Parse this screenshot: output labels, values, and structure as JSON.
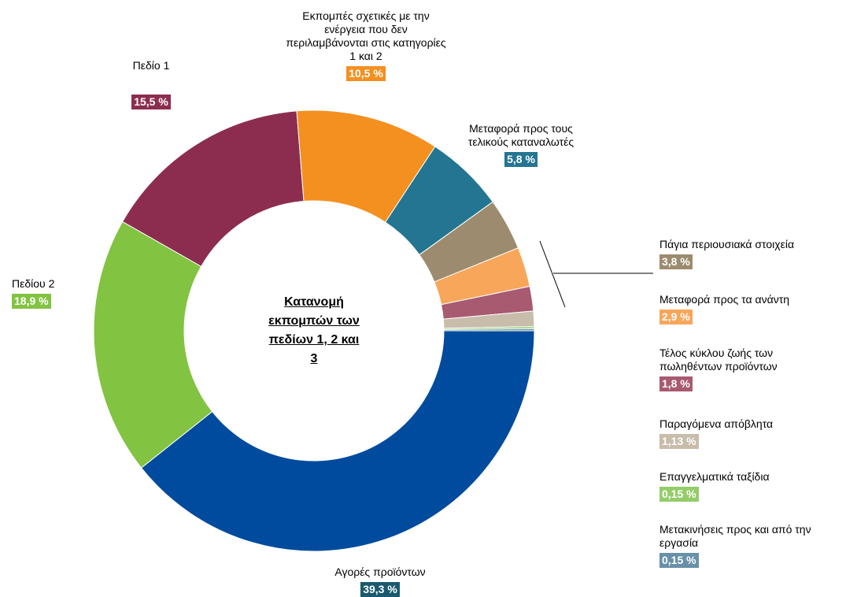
{
  "chart_data": {
    "type": "donut",
    "title": "Κατανομή\nεκπομπών των\nπεδίων 1, 2 και\n3",
    "categories": [
      "Αγορές προϊόντων",
      "Πεδίου 2",
      "Πεδίο 1",
      "Εκπομπές σχετικές με την\nενέργεια που δεν\nπεριλαμβάνονται στις κατηγορίες\n1 και 2",
      "Μεταφορά προς τους\nτελικούς καταναλωτές",
      "Πάγια περιουσιακά στοιχεία",
      "Μεταφορά προς τα ανάντη",
      "Τέλος κύκλου ζωής των\nπωληθέντων προϊόντων",
      "Παραγόμενα απόβλητα",
      "Επαγγελματικά ταξίδια",
      "Μετακινήσεις προς και από την\nεργασία"
    ],
    "values": [
      39.3,
      18.9,
      15.5,
      10.5,
      5.8,
      3.8,
      2.9,
      1.8,
      1.13,
      0.15,
      0.15
    ],
    "value_labels": [
      "39,3 %",
      "18,9 %",
      "15,5 %",
      "10,5 %",
      "5,8 %",
      "3,8 %",
      "2,9 %",
      "1,8 %",
      "1,13 %",
      "0,15 %",
      "0,15 %"
    ],
    "colors": [
      "#004b9e",
      "#82c341",
      "#8c2d4f",
      "#f39020",
      "#237591",
      "#9c8b6e",
      "#f8a65a",
      "#a85a70",
      "#c8bcab",
      "#94cc6a",
      "#6890a8"
    ],
    "badge_colors": [
      "#1b5a6e",
      "#82c341",
      "#8c2d4f",
      "#f39020",
      "#237591",
      "#9c8b6e",
      "#f8a65a",
      "#a85a70",
      "#c8bcab",
      "#94cc6a",
      "#6890a8"
    ]
  }
}
